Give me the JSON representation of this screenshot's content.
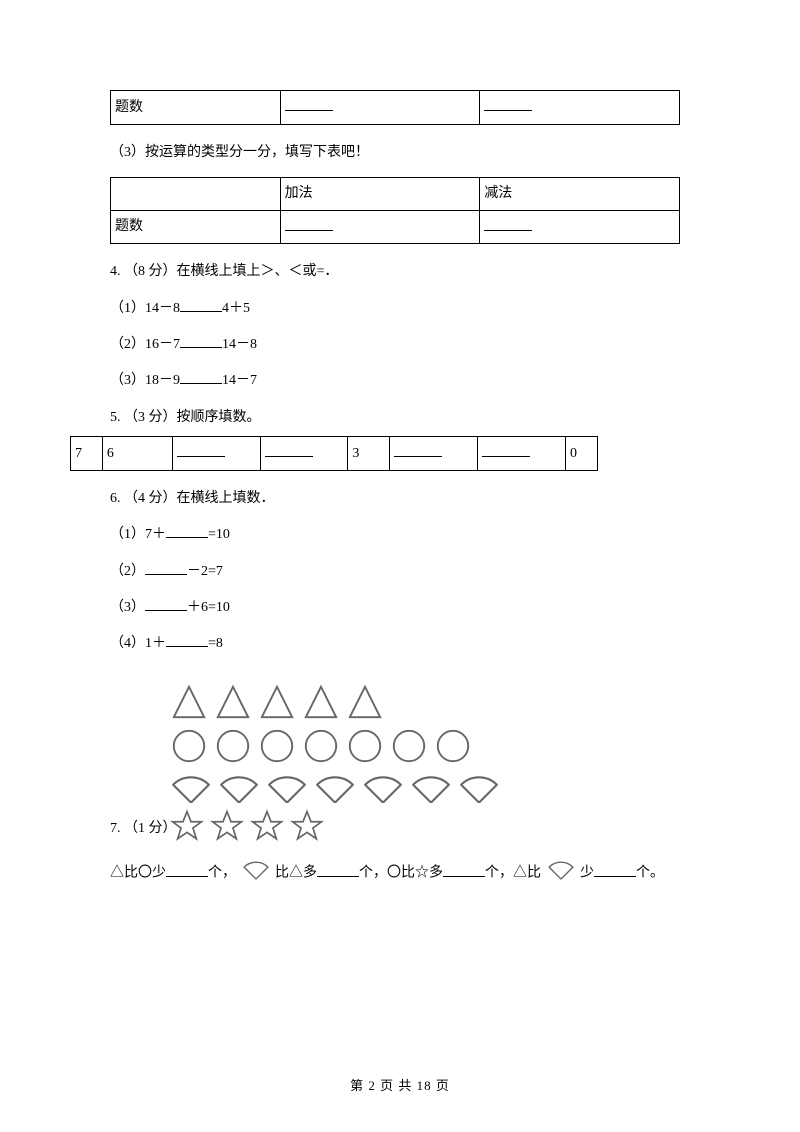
{
  "table1": {
    "row_label": "题数"
  },
  "q3_3": "（3）按运算的类型分一分，填写下表吧！",
  "table2": {
    "h1": "",
    "h2": "加法",
    "h3": "减法",
    "row_label": "题数"
  },
  "q4": "4.  （8 分）在横线上填上＞、＜或=．",
  "q4_1a": "（1）14－8",
  "q4_1b": "4＋5",
  "q4_2a": "（2）16－7",
  "q4_2b": "14－8",
  "q4_3a": "（3）18－9",
  "q4_3b": "14－7",
  "q5": "5.  （3 分）按顺序填数。",
  "seq": {
    "c0": "7",
    "c1": "6",
    "c4": "3",
    "c7": "0"
  },
  "q6": "6.  （4 分）在横线上填数．",
  "q6_1a": "（1）7＋",
  "q6_1b": "=10",
  "q6_2a": "（2）",
  "q6_2b": "－2=7",
  "q6_3a": "（3）",
  "q6_3b": "＋6=10",
  "q6_4a": "（4）1＋",
  "q6_4b": "=8",
  "q7_label": "7.  （1 分）",
  "q7_text": {
    "p1": "△比〇少",
    "p2": "个，",
    "p3": "比△多",
    "p4": "个，〇比☆多",
    "p5": "个，△比",
    "p6": "少",
    "p7": "个。"
  },
  "counts": {
    "triangles": 5,
    "circles": 7,
    "fans": 7,
    "stars": 4
  },
  "colors": {
    "text": "#000000",
    "bg": "#ffffff",
    "shape_stroke": "#666666"
  },
  "footer": "第 2 页 共 18 页"
}
